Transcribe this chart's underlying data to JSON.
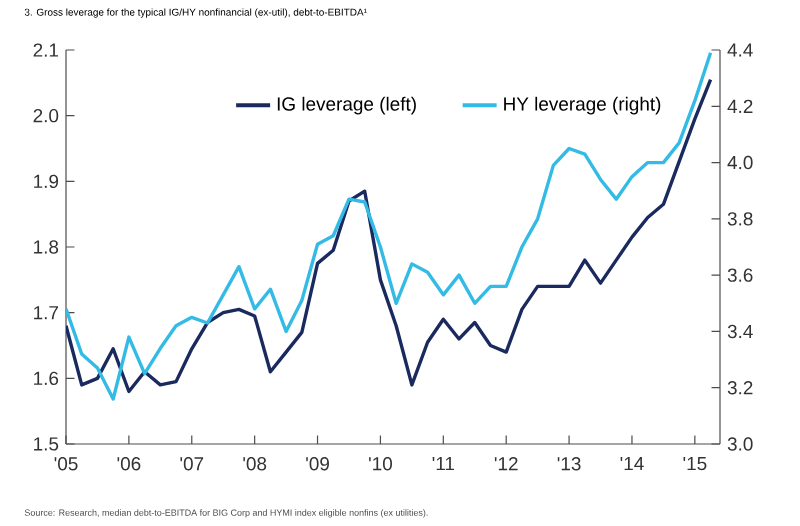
{
  "chart_data": {
    "type": "line",
    "title": "3. Gross leverage for the typical IG/HY nonfinancial (ex-util), debt-to-EBITDA¹",
    "x": [
      2005.0,
      2005.25,
      2005.5,
      2005.75,
      2006.0,
      2006.25,
      2006.5,
      2006.75,
      2007.0,
      2007.25,
      2007.5,
      2007.75,
      2008.0,
      2008.25,
      2008.5,
      2008.75,
      2009.0,
      2009.25,
      2009.5,
      2009.75,
      2010.0,
      2010.25,
      2010.5,
      2010.75,
      2011.0,
      2011.25,
      2011.5,
      2011.75,
      2012.0,
      2012.25,
      2012.5,
      2012.75,
      2013.0,
      2013.25,
      2013.5,
      2013.75,
      2014.0,
      2014.25,
      2014.5,
      2014.75,
      2015.0,
      2015.25
    ],
    "series": [
      {
        "name": "IG leverage (left)",
        "color": "#1a2a5e",
        "values": [
          1.68,
          1.59,
          1.6,
          1.645,
          1.58,
          1.61,
          1.59,
          1.595,
          1.645,
          1.685,
          1.7,
          1.705,
          1.695,
          1.61,
          1.64,
          1.67,
          1.775,
          1.795,
          1.87,
          1.885,
          1.75,
          1.68,
          1.59,
          1.655,
          1.69,
          1.66,
          1.685,
          1.65,
          1.64,
          1.705,
          1.74,
          1.74,
          1.74,
          1.78,
          1.745,
          1.78,
          1.815,
          1.845,
          1.865,
          1.93,
          1.995,
          2.055
        ]
      },
      {
        "name": "HY leverage (right)",
        "color": "#33bbe6",
        "axis": "y2",
        "values": [
          3.48,
          3.32,
          3.27,
          3.16,
          3.38,
          3.25,
          3.34,
          3.42,
          3.45,
          3.43,
          3.53,
          3.63,
          3.48,
          3.55,
          3.4,
          3.51,
          3.71,
          3.74,
          3.87,
          3.86,
          3.7,
          3.5,
          3.64,
          3.61,
          3.53,
          3.6,
          3.5,
          3.56,
          3.56,
          3.7,
          3.8,
          3.99,
          4.05,
          4.03,
          3.94,
          3.87,
          3.95,
          4.0,
          4.0,
          4.07,
          4.22,
          4.39
        ]
      }
    ],
    "xlim": [
      2005,
      2015.4
    ],
    "xticks": [
      {
        "value": 2005,
        "label": "'05"
      },
      {
        "value": 2006,
        "label": "'06"
      },
      {
        "value": 2007,
        "label": "'07"
      },
      {
        "value": 2008,
        "label": "'08"
      },
      {
        "value": 2009,
        "label": "'09"
      },
      {
        "value": 2010,
        "label": "'10"
      },
      {
        "value": 2011,
        "label": "'11"
      },
      {
        "value": 2012,
        "label": "'12"
      },
      {
        "value": 2013,
        "label": "'13"
      },
      {
        "value": 2014,
        "label": "'14"
      },
      {
        "value": 2015,
        "label": "'15"
      }
    ],
    "ylim": [
      1.5,
      2.1
    ],
    "yticks": [
      1.5,
      1.6,
      1.7,
      1.8,
      1.9,
      {
        "value": 2,
        "label": "2.0"
      },
      2.1
    ],
    "y2lim": [
      3,
      4.4
    ],
    "y2ticks": [
      {
        "value": 3,
        "label": "3.0"
      },
      3.2,
      3.4,
      3.6,
      3.8,
      {
        "value": 4,
        "label": "4.0"
      },
      4.2,
      4.4
    ],
    "grid": false,
    "legend": "top",
    "marker": "none",
    "line_style": "solid",
    "annotations": [
      "Source: Research, median debt-to-EBITDA for BIG Corp and HYMI index eligible nonfins (ex utilities)."
    ]
  }
}
